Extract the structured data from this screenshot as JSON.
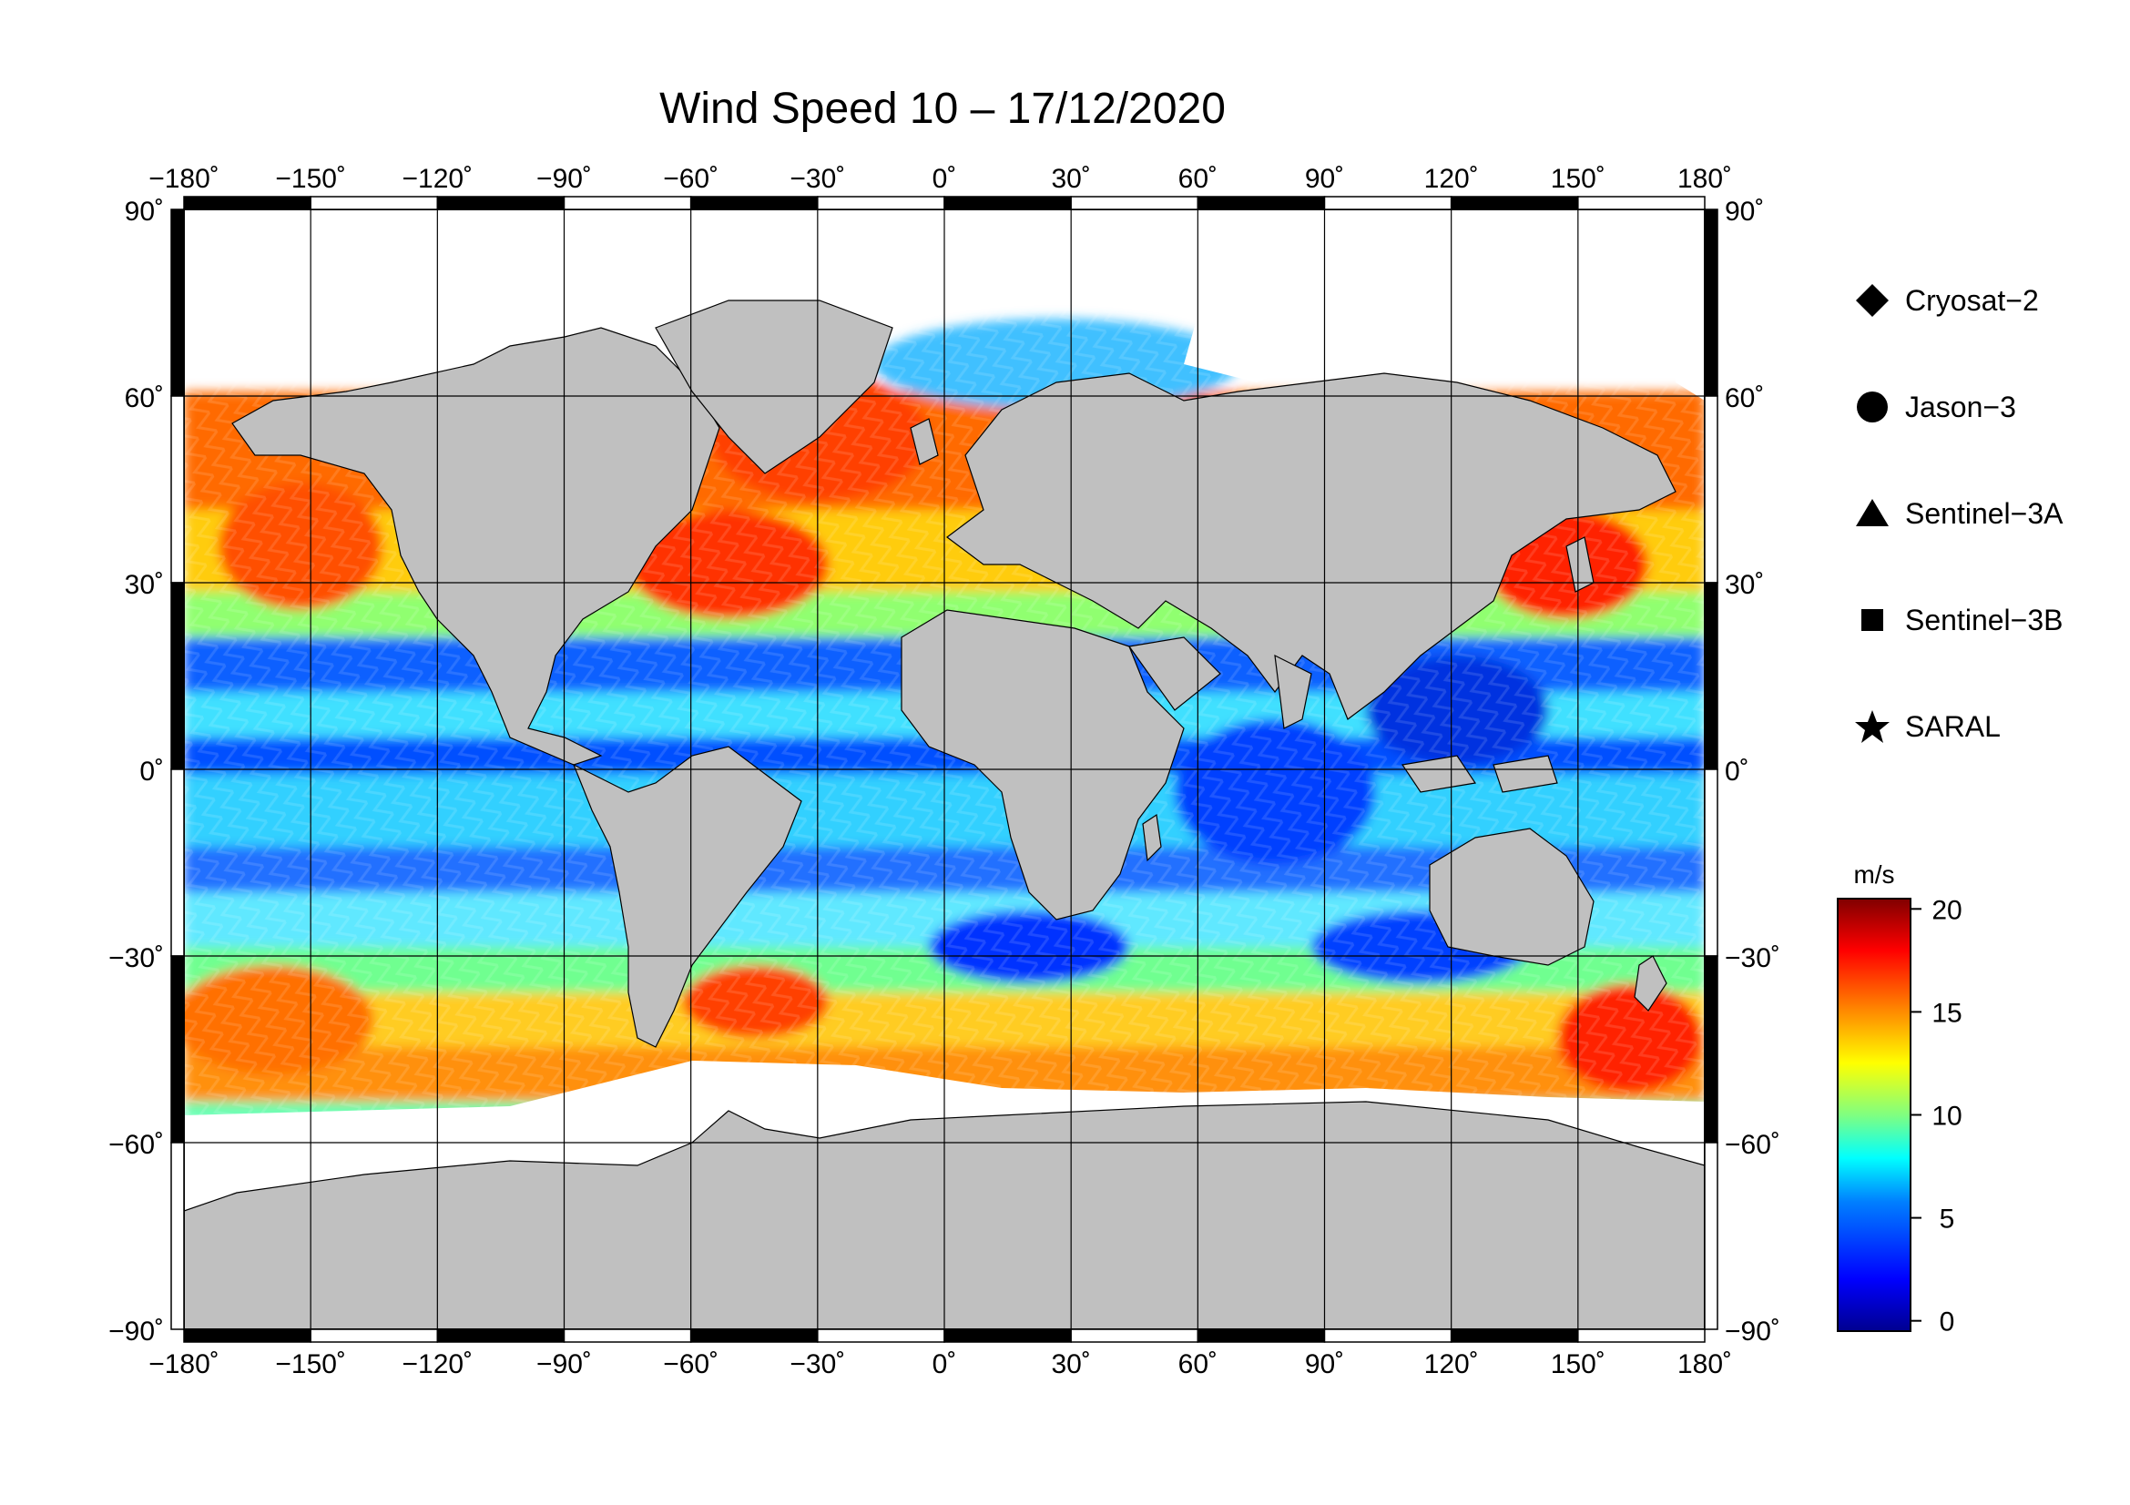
{
  "title": "Wind Speed 10 – 17/12/2020",
  "map": {
    "lon_ticks": [
      "−180˚",
      "−150˚",
      "−120˚",
      "−90˚",
      "−60˚",
      "−30˚",
      "0˚",
      "30˚",
      "60˚",
      "90˚",
      "120˚",
      "150˚",
      "180˚"
    ],
    "lat_ticks_left": [
      "90˚",
      "60˚",
      "30˚",
      "0˚",
      "−30˚",
      "−60˚",
      "−90˚"
    ],
    "lat_ticks_right": [
      "90˚",
      "60˚",
      "30˚",
      "0˚",
      "−30˚",
      "−60˚",
      "−90˚"
    ],
    "lon_range": [
      -180,
      180
    ],
    "lat_range": [
      -90,
      90
    ],
    "grid": true,
    "land_color": "#c0c0c0",
    "ice_color": "#ffffff"
  },
  "legend": {
    "items": [
      {
        "label": "Cryosat−2",
        "symbol": "diamond-icon"
      },
      {
        "label": "Jason−3",
        "symbol": "circle-icon"
      },
      {
        "label": "Sentinel−3A",
        "symbol": "triangle-icon"
      },
      {
        "label": "Sentinel−3B",
        "symbol": "square-icon"
      },
      {
        "label": "SARAL",
        "symbol": "star-icon"
      }
    ]
  },
  "colorbar": {
    "unit": "m/s",
    "ticks": [
      "0",
      "5",
      "10",
      "15",
      "20"
    ],
    "range": [
      -0.5,
      20.5
    ],
    "colormap": [
      "#00008f",
      "#0000ff",
      "#0080ff",
      "#00ffff",
      "#80ff80",
      "#ffff00",
      "#ff8000",
      "#ff0000",
      "#800000"
    ]
  }
}
